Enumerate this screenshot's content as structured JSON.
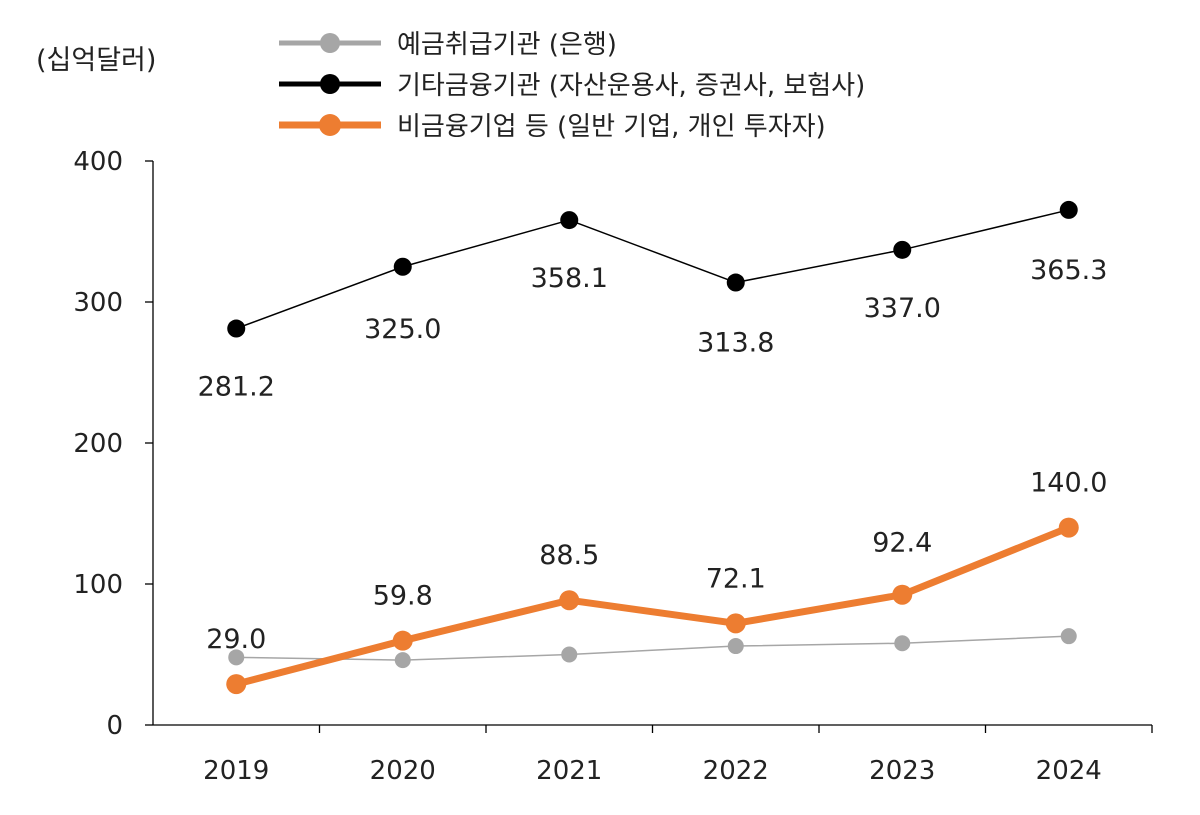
{
  "chart_data": {
    "type": "line",
    "unit_label": "(십억달러)",
    "categories": [
      "2019",
      "2020",
      "2021",
      "2022",
      "2023",
      "2024"
    ],
    "ylim": [
      0,
      400
    ],
    "yticks": [
      0,
      100,
      200,
      300,
      400
    ],
    "grid": false,
    "legend_position": "top",
    "series": [
      {
        "name": "예금취급기관 (은행)",
        "color": "#a6a6a6",
        "values": [
          48,
          46,
          50,
          56,
          58,
          63
        ],
        "show_labels": false
      },
      {
        "name": "기타금융기관 (자산운용사, 증권사, 보험사)",
        "color": "#000000",
        "values": [
          281.2,
          325.0,
          358.1,
          313.8,
          337.0,
          365.3
        ],
        "labels": [
          "281.2",
          "325.0",
          "358.1",
          "313.8",
          "337.0",
          "365.3"
        ],
        "show_labels": true
      },
      {
        "name": "비금융기업 등 (일반 기업, 개인 투자자)",
        "color": "#ed7d31",
        "values": [
          29.0,
          59.8,
          88.5,
          72.1,
          92.4,
          140.0
        ],
        "labels": [
          "29.0",
          "59.8",
          "88.5",
          "72.1",
          "92.4",
          "140.0"
        ],
        "show_labels": true
      }
    ]
  }
}
